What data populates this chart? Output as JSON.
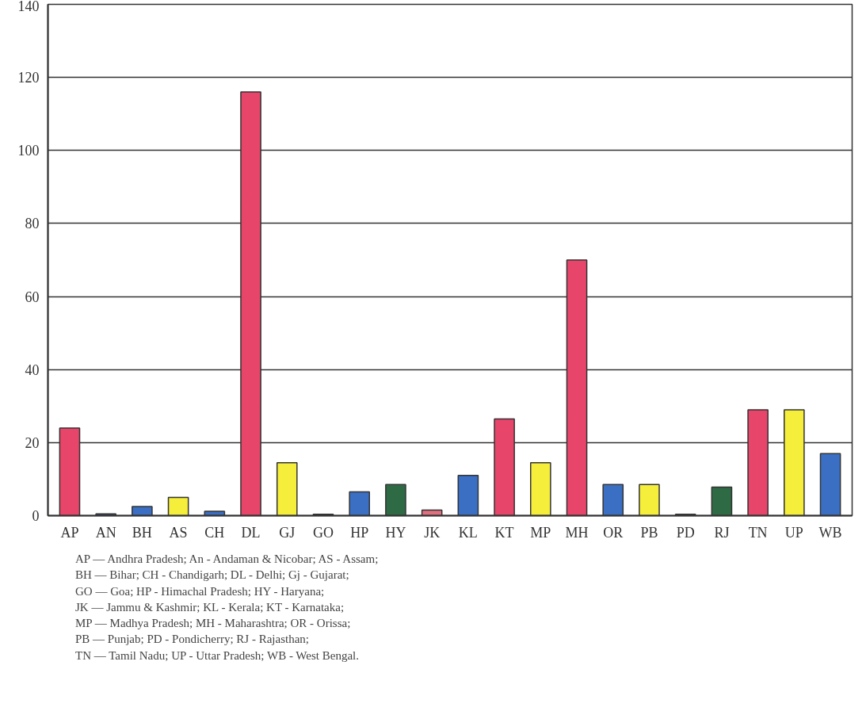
{
  "chart_data": {
    "type": "bar",
    "categories": [
      "AP",
      "AN",
      "BH",
      "AS",
      "CH",
      "DL",
      "GJ",
      "GO",
      "HP",
      "HY",
      "JK",
      "KL",
      "KT",
      "MP",
      "MH",
      "OR",
      "PB",
      "PD",
      "RJ",
      "TN",
      "UP",
      "WB"
    ],
    "values": [
      24,
      0.5,
      2.5,
      5,
      1.2,
      116,
      14.5,
      0.4,
      6.5,
      8.5,
      1.5,
      11,
      26.5,
      14.5,
      70,
      8.5,
      8.5,
      0.4,
      7.8,
      29,
      29,
      17
    ],
    "colors": [
      "#e8456a",
      "#3a4f7a",
      "#3a6fc4",
      "#f5ee3a",
      "#3a6fc4",
      "#e8456a",
      "#f5ee3a",
      "#3a4f5a",
      "#3a6fc4",
      "#2e6b45",
      "#e07080",
      "#3a6fc4",
      "#e8456a",
      "#f5ee3a",
      "#e8456a",
      "#3a6fc4",
      "#f5ee3a",
      "#806060",
      "#2e6b45",
      "#e8456a",
      "#f5ee3a",
      "#3a6fc4"
    ],
    "ylim": [
      0,
      140
    ],
    "yticks": [
      0,
      20,
      40,
      60,
      80,
      100,
      120,
      140
    ],
    "grid": "y",
    "annotations": [
      "AP — Andhra Pradesh; An - Andaman & Nicobar; AS - Assam;",
      "BH — Bihar; CH - Chandigarh; DL - Delhi; Gj - Gujarat;",
      "GO — Goa; HP - Himachal Pradesh; HY - Haryana;",
      "JK — Jammu & Kashmir; KL - Kerala; KT - Karnataka;",
      "MP — Madhya Pradesh; MH - Maharashtra; OR - Orissa;",
      "PB — Punjab; PD - Pondicherry; RJ - Rajasthan;",
      "TN — Tamil Nadu; UP - Uttar Pradesh; WB - West Bengal."
    ]
  }
}
